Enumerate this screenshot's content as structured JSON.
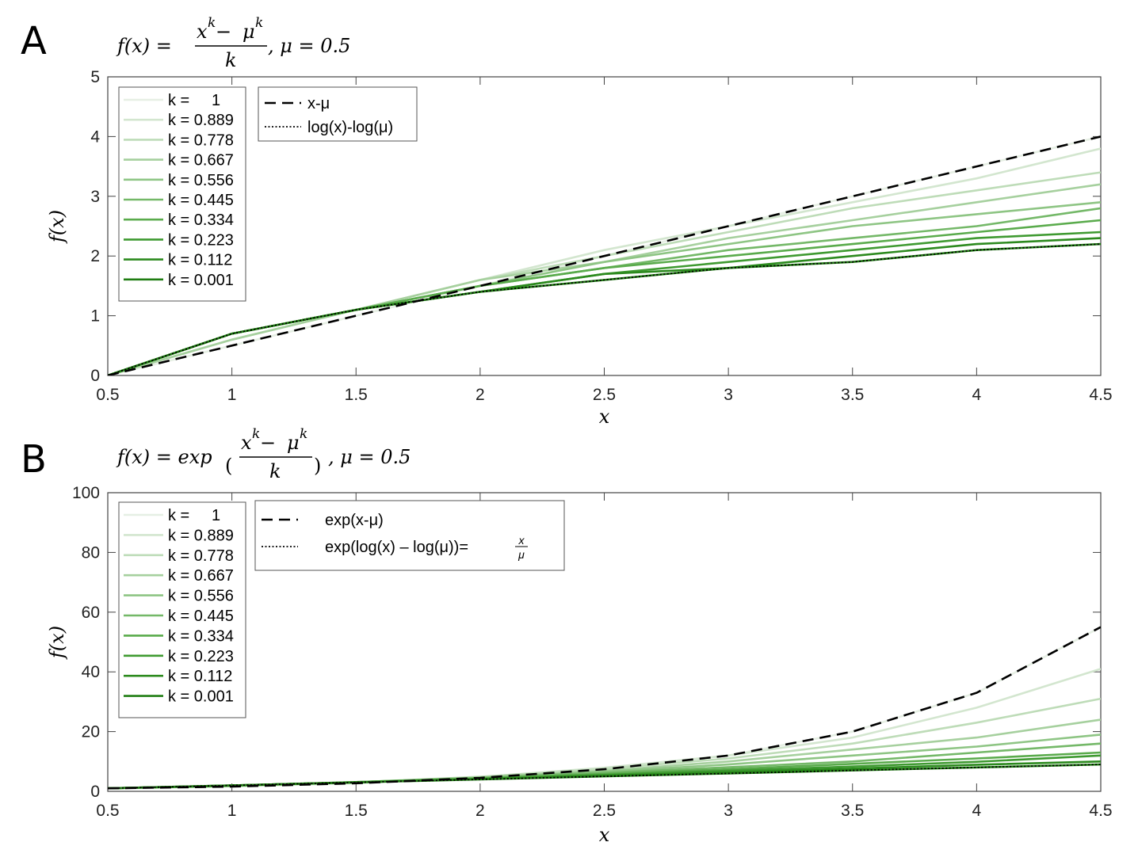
{
  "chart_data": [
    {
      "panel": "A",
      "type": "line",
      "title": "f(x) = (x^k − μ^k)/k, μ = 0.5",
      "title_parts": {
        "lhs": "f(x) =",
        "num_x": "x",
        "num_minus": " − ",
        "num_mu": "μ",
        "sup": "k",
        "den": "k",
        "rest": ", μ = 0.5"
      },
      "xlabel": "x",
      "ylabel": "f(x)",
      "xlim": [
        0.5,
        4.5
      ],
      "ylim": [
        0,
        5
      ],
      "xticks": [
        "0.5",
        "1",
        "1.5",
        "2",
        "2.5",
        "3",
        "3.5",
        "4",
        "4.5"
      ],
      "yticks": [
        "0",
        "1",
        "2",
        "3",
        "4",
        "5"
      ],
      "mu": 0.5,
      "k_values": [
        1,
        0.889,
        0.778,
        0.667,
        0.556,
        0.445,
        0.334,
        0.223,
        0.112,
        0.001
      ],
      "k_labels": [
        "k =     1",
        "k = 0.889",
        "k = 0.778",
        "k = 0.667",
        "k = 0.556",
        "k = 0.445",
        "k = 0.334",
        "k = 0.223",
        "k = 0.112",
        "k = 0.001"
      ],
      "series_colors": [
        "#e6efe4",
        "#d3e6cf",
        "#bedcb8",
        "#a6d09e",
        "#8ec584",
        "#74b868",
        "#5aab4c",
        "#3f9a31",
        "#2c8a1e",
        "#1f7d12"
      ],
      "x": [
        0.5,
        1.0,
        1.5,
        2.0,
        2.5,
        3.0,
        3.5,
        4.0,
        4.5
      ],
      "series": [
        {
          "name": "k =     1",
          "values": [
            0,
            0.5,
            1.0,
            1.5,
            2.0,
            2.5,
            3.0,
            3.5,
            4.0
          ]
        },
        {
          "name": "k = 0.889",
          "values": [
            0,
            0.6,
            1.1,
            1.6,
            2.1,
            2.5,
            2.9,
            3.3,
            3.8
          ]
        },
        {
          "name": "k = 0.778",
          "values": [
            0,
            0.6,
            1.1,
            1.6,
            2.0,
            2.4,
            2.8,
            3.1,
            3.4
          ]
        },
        {
          "name": "k = 0.667",
          "values": [
            0,
            0.6,
            1.1,
            1.6,
            1.9,
            2.3,
            2.6,
            2.9,
            3.2
          ]
        },
        {
          "name": "k = 0.556",
          "values": [
            0,
            0.7,
            1.1,
            1.5,
            1.9,
            2.2,
            2.5,
            2.7,
            2.9
          ]
        },
        {
          "name": "k = 0.445",
          "values": [
            0,
            0.7,
            1.1,
            1.5,
            1.8,
            2.1,
            2.3,
            2.5,
            2.8
          ]
        },
        {
          "name": "k = 0.334",
          "values": [
            0,
            0.7,
            1.1,
            1.5,
            1.8,
            2.0,
            2.2,
            2.4,
            2.6
          ]
        },
        {
          "name": "k = 0.223",
          "values": [
            0,
            0.7,
            1.1,
            1.4,
            1.7,
            1.9,
            2.1,
            2.3,
            2.4
          ]
        },
        {
          "name": "k = 0.112",
          "values": [
            0,
            0.7,
            1.1,
            1.4,
            1.7,
            1.8,
            2.0,
            2.2,
            2.3
          ]
        },
        {
          "name": "k = 0.001",
          "values": [
            0,
            0.7,
            1.1,
            1.4,
            1.6,
            1.8,
            1.9,
            2.1,
            2.2
          ]
        }
      ],
      "ref_series": [
        {
          "name": "x-μ",
          "style": "dashed",
          "values": [
            0,
            0.5,
            1.0,
            1.5,
            2.0,
            2.5,
            3.0,
            3.5,
            4.0
          ]
        },
        {
          "name": "log(x)-log(μ)",
          "style": "dotted",
          "values": [
            0,
            0.7,
            1.1,
            1.4,
            1.6,
            1.8,
            1.9,
            2.1,
            2.2
          ]
        }
      ],
      "ref_legend": {
        "dashed": "x-μ",
        "dotted": "log(x)-log(μ)"
      },
      "grid": false,
      "legend_placement": "top-left"
    },
    {
      "panel": "B",
      "type": "line",
      "title": "f(x) = exp((x^k − μ^k)/k), μ = 0.5",
      "title_parts": {
        "lhs": "f(x) = exp",
        "num_x": "x",
        "num_minus": " − ",
        "num_mu": "μ",
        "sup": "k",
        "den": "k",
        "rest": ", μ = 0.5"
      },
      "xlabel": "x",
      "ylabel": "f(x)",
      "xlim": [
        0.5,
        4.5
      ],
      "ylim": [
        0,
        100
      ],
      "xticks": [
        "0.5",
        "1",
        "1.5",
        "2",
        "2.5",
        "3",
        "3.5",
        "4",
        "4.5"
      ],
      "yticks": [
        "0",
        "20",
        "40",
        "60",
        "80",
        "100"
      ],
      "mu": 0.5,
      "k_values": [
        1,
        0.889,
        0.778,
        0.667,
        0.556,
        0.445,
        0.334,
        0.223,
        0.112,
        0.001
      ],
      "k_labels": [
        "k =     1",
        "k = 0.889",
        "k = 0.778",
        "k = 0.667",
        "k = 0.556",
        "k = 0.445",
        "k = 0.334",
        "k = 0.223",
        "k = 0.112",
        "k = 0.001"
      ],
      "series_colors": [
        "#e6efe4",
        "#d3e6cf",
        "#bedcb8",
        "#a6d09e",
        "#8ec584",
        "#74b868",
        "#5aab4c",
        "#3f9a31",
        "#2c8a1e",
        "#1f7d12"
      ],
      "x": [
        0.5,
        1.0,
        1.5,
        2.0,
        2.5,
        3.0,
        3.5,
        4.0,
        4.5
      ],
      "series": [
        {
          "name": "k =     1",
          "values": [
            1.0,
            1.6,
            2.7,
            4.5,
            7.4,
            12,
            20,
            33,
            55
          ]
        },
        {
          "name": "k = 0.889",
          "values": [
            1.0,
            1.7,
            2.9,
            4.8,
            7.9,
            12,
            18,
            28,
            41
          ]
        },
        {
          "name": "k = 0.778",
          "values": [
            1.0,
            1.8,
            3.0,
            4.9,
            7.5,
            11,
            16,
            23,
            31
          ]
        },
        {
          "name": "k = 0.667",
          "values": [
            1.0,
            1.8,
            3.0,
            4.7,
            6.9,
            10,
            14,
            18,
            24
          ]
        },
        {
          "name": "k = 0.556",
          "values": [
            1.0,
            1.9,
            3.1,
            4.6,
            6.6,
            9.0,
            12,
            15,
            19
          ]
        },
        {
          "name": "k = 0.445",
          "values": [
            1.0,
            1.9,
            3.1,
            4.5,
            6.2,
            8.1,
            10,
            13,
            16
          ]
        },
        {
          "name": "k = 0.334",
          "values": [
            1.0,
            1.9,
            3.1,
            4.3,
            5.8,
            7.4,
            9.2,
            11,
            13
          ]
        },
        {
          "name": "k = 0.223",
          "values": [
            1.0,
            2.0,
            3.0,
            4.2,
            5.5,
            6.9,
            8.3,
            9.9,
            12
          ]
        },
        {
          "name": "k = 0.112",
          "values": [
            1.0,
            2.0,
            3.0,
            4.1,
            5.2,
            6.4,
            7.6,
            8.9,
            10
          ]
        },
        {
          "name": "k = 0.001",
          "values": [
            1.0,
            2.0,
            3.0,
            4.0,
            5.0,
            6.0,
            7.0,
            8.0,
            9.0
          ]
        }
      ],
      "ref_series": [
        {
          "name": "exp(x-μ)",
          "style": "dashed",
          "values": [
            1.0,
            1.6,
            2.7,
            4.5,
            7.4,
            12,
            20,
            33,
            55
          ]
        },
        {
          "name": "exp(log(x) – log(μ))= x/μ",
          "style": "dotted",
          "values": [
            1.0,
            2.0,
            3.0,
            4.0,
            5.0,
            6.0,
            7.0,
            8.0,
            9.0
          ]
        }
      ],
      "ref_legend": {
        "dashed": "exp(x-μ)",
        "dotted": "exp(log(x) – log(μ))=",
        "frac_num": "x",
        "frac_den": "μ"
      },
      "grid": false,
      "legend_placement": "top-left"
    }
  ],
  "panel_letters": [
    "A",
    "B"
  ]
}
